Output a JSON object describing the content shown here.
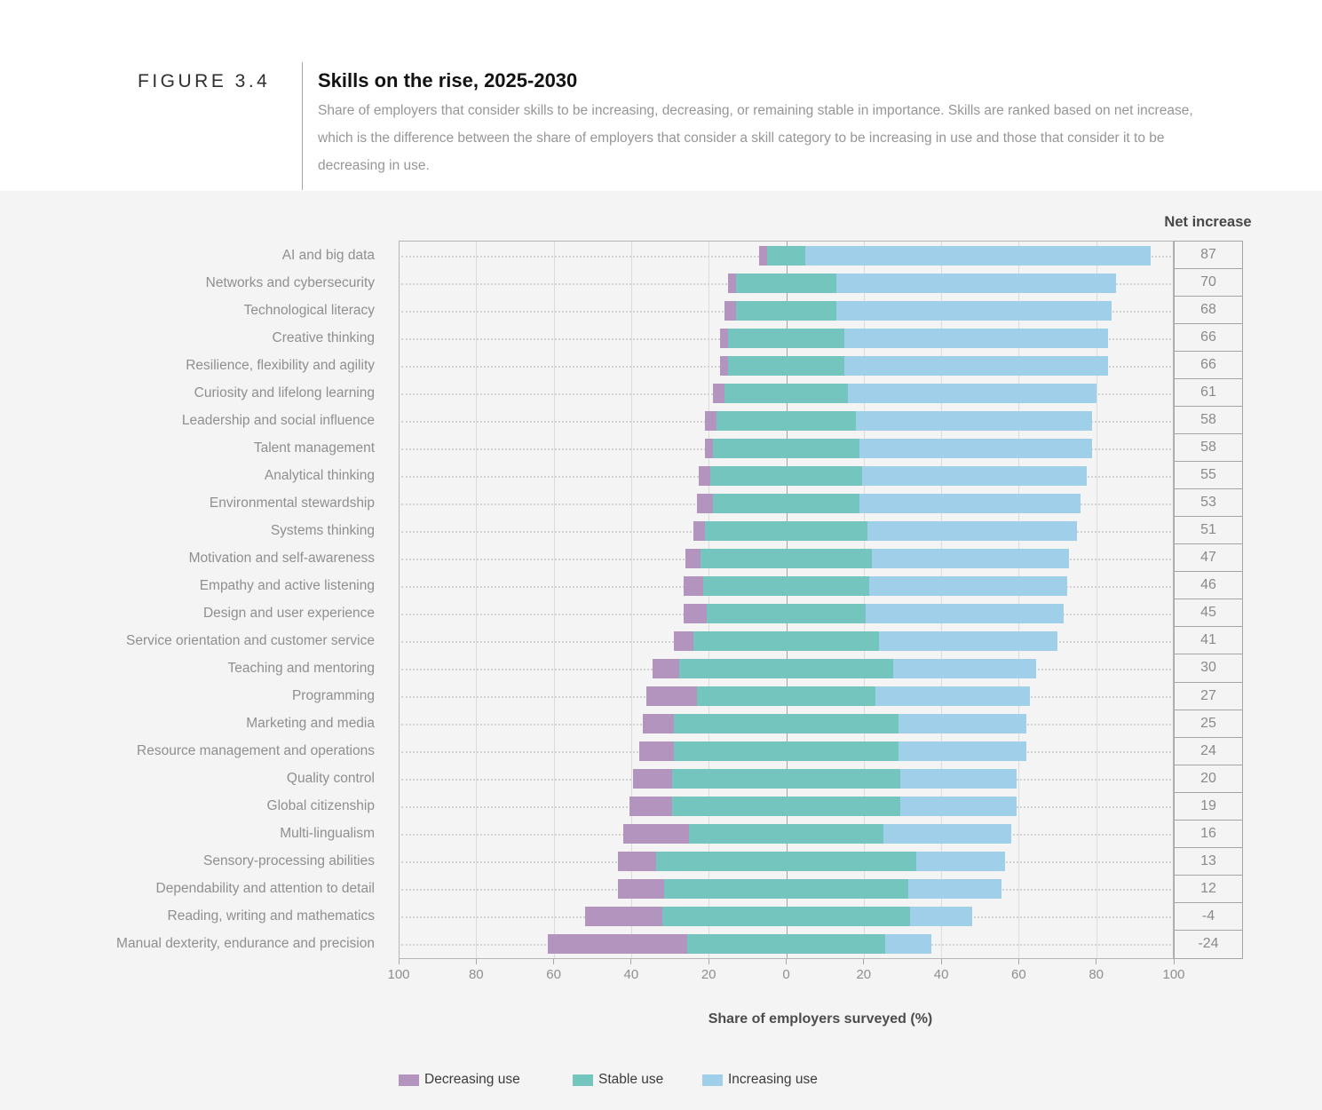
{
  "figure": {
    "label": "FIGURE 3.4",
    "title": "Skills on the rise, 2025-2030",
    "subtitle": "Share of employers that consider skills to be increasing, decreasing, or remaining stable in importance. Skills are ranked based on net increase, which is the difference between the share of employers that consider a skill category to be increasing in use and those that consider it to be decreasing in use."
  },
  "chart_data": {
    "type": "bar",
    "variant": "horizontal diverging stacked, stable segment centered on zero",
    "title": "Skills on the rise, 2025-2030",
    "xlabel": "Share of employers surveyed (%)",
    "net_column_header": "Net increase",
    "x_ticks": [
      100,
      80,
      60,
      40,
      20,
      0,
      20,
      40,
      60,
      80,
      100
    ],
    "xlim": [
      -100,
      100
    ],
    "grid": true,
    "legend_position": "bottom",
    "legend": [
      {
        "name": "Decreasing use",
        "color": "#b294bf"
      },
      {
        "name": "Stable use",
        "color": "#74c5bd"
      },
      {
        "name": "Increasing use",
        "color": "#a0cfe9"
      }
    ],
    "skills": [
      {
        "label": "AI and big data",
        "decreasing": 2,
        "stable": 10,
        "increasing": 89,
        "net": 87
      },
      {
        "label": "Networks and cybersecurity",
        "decreasing": 2,
        "stable": 26,
        "increasing": 72,
        "net": 70
      },
      {
        "label": "Technological literacy",
        "decreasing": 3,
        "stable": 26,
        "increasing": 71,
        "net": 68
      },
      {
        "label": "Creative thinking",
        "decreasing": 2,
        "stable": 30,
        "increasing": 68,
        "net": 66
      },
      {
        "label": "Resilience, flexibility and agility",
        "decreasing": 2,
        "stable": 30,
        "increasing": 68,
        "net": 66
      },
      {
        "label": "Curiosity and lifelong learning",
        "decreasing": 3,
        "stable": 32,
        "increasing": 64,
        "net": 61
      },
      {
        "label": "Leadership and social influence",
        "decreasing": 3,
        "stable": 36,
        "increasing": 61,
        "net": 58
      },
      {
        "label": "Talent management",
        "decreasing": 2,
        "stable": 38,
        "increasing": 60,
        "net": 58
      },
      {
        "label": "Analytical thinking",
        "decreasing": 3,
        "stable": 39,
        "increasing": 58,
        "net": 55
      },
      {
        "label": "Environmental stewardship",
        "decreasing": 4,
        "stable": 38,
        "increasing": 57,
        "net": 53
      },
      {
        "label": "Systems thinking",
        "decreasing": 3,
        "stable": 42,
        "increasing": 54,
        "net": 51
      },
      {
        "label": "Motivation and self-awareness",
        "decreasing": 4,
        "stable": 44,
        "increasing": 51,
        "net": 47
      },
      {
        "label": "Empathy and active listening",
        "decreasing": 5,
        "stable": 43,
        "increasing": 51,
        "net": 46
      },
      {
        "label": "Design and user experience",
        "decreasing": 6,
        "stable": 41,
        "increasing": 51,
        "net": 45
      },
      {
        "label": "Service orientation and customer service",
        "decreasing": 5,
        "stable": 48,
        "increasing": 46,
        "net": 41
      },
      {
        "label": "Teaching and mentoring",
        "decreasing": 7,
        "stable": 55,
        "increasing": 37,
        "net": 30
      },
      {
        "label": "Programming",
        "decreasing": 13,
        "stable": 46,
        "increasing": 40,
        "net": 27
      },
      {
        "label": "Marketing and media",
        "decreasing": 8,
        "stable": 58,
        "increasing": 33,
        "net": 25
      },
      {
        "label": "Resource management and operations",
        "decreasing": 9,
        "stable": 58,
        "increasing": 33,
        "net": 24
      },
      {
        "label": "Quality control",
        "decreasing": 10,
        "stable": 59,
        "increasing": 30,
        "net": 20
      },
      {
        "label": "Global citizenship",
        "decreasing": 11,
        "stable": 59,
        "increasing": 30,
        "net": 19
      },
      {
        "label": "Multi-lingualism",
        "decreasing": 17,
        "stable": 50,
        "increasing": 33,
        "net": 16
      },
      {
        "label": "Sensory-processing abilities",
        "decreasing": 10,
        "stable": 67,
        "increasing": 23,
        "net": 13
      },
      {
        "label": "Dependability and attention to detail",
        "decreasing": 12,
        "stable": 63,
        "increasing": 24,
        "net": 12
      },
      {
        "label": "Reading, writing and mathematics",
        "decreasing": 20,
        "stable": 64,
        "increasing": 16,
        "net": -4
      },
      {
        "label": "Manual dexterity, endurance and precision",
        "decreasing": 36,
        "stable": 51,
        "increasing": 12,
        "net": -24
      }
    ]
  },
  "colors": {
    "section_background": "#f4f4f4",
    "page_background": "#ffffff",
    "decreasing": "#b294bf",
    "stable": "#74c5bd",
    "increasing": "#a0cfe9",
    "gridline": "#dcdcdc",
    "zero_line": "#a3a3a3",
    "plot_border": "#b6b6b6",
    "table_border": "#a5a5a5",
    "muted_text": "#8f8f8f",
    "dark_text": "#3b3b3b"
  }
}
